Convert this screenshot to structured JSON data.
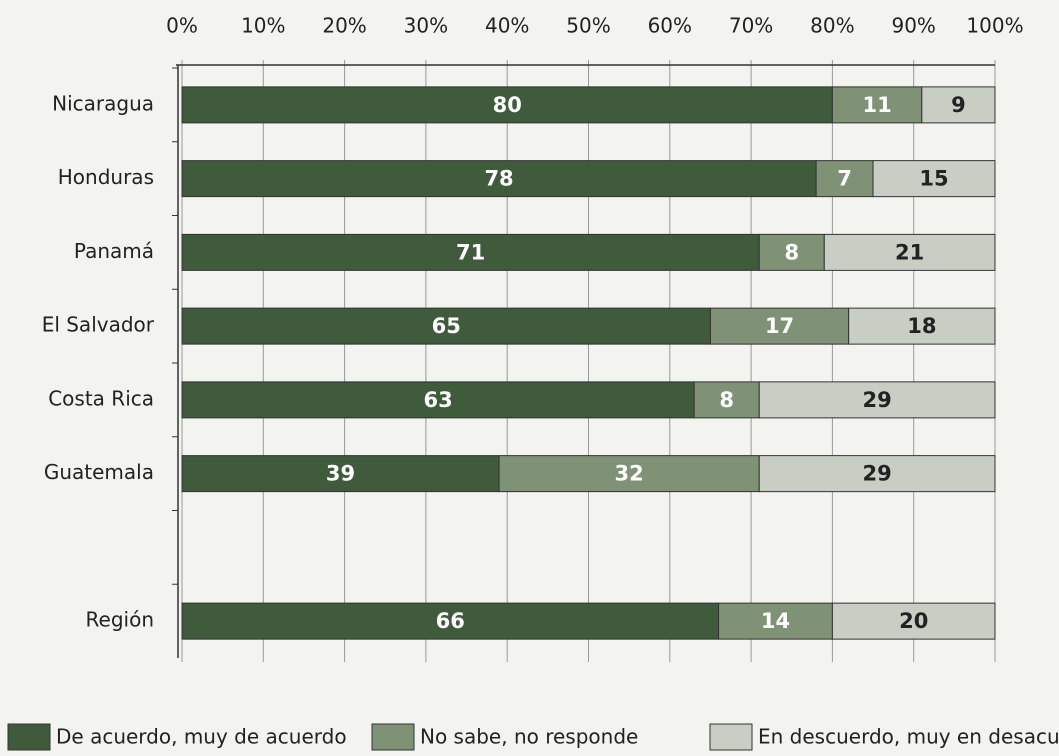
{
  "chart_data": {
    "type": "stacked-barh",
    "categories": [
      "Nicaragua",
      "Honduras",
      "Panamá",
      "El Salvador",
      "Costa Rica",
      "Guatemala",
      null,
      "Región"
    ],
    "series": [
      {
        "name": "De acuerdo, muy de acuerdo",
        "color": "#3f5b3c",
        "values": [
          80,
          78,
          71,
          65,
          63,
          39,
          null,
          66
        ]
      },
      {
        "name": "No sabe, no responde",
        "color": "#7f9276",
        "values": [
          11,
          7,
          8,
          17,
          8,
          32,
          null,
          14
        ]
      },
      {
        "name": "En descuerdo, muy en desacuerdo",
        "color": "#c9cec5",
        "values": [
          9,
          15,
          21,
          18,
          29,
          29,
          null,
          20
        ]
      }
    ],
    "xlim": [
      0,
      100
    ],
    "xticks": [
      {
        "value": 0,
        "label": "0%"
      },
      {
        "value": 10,
        "label": "10%"
      },
      {
        "value": 20,
        "label": "20%"
      },
      {
        "value": 30,
        "label": "30%"
      },
      {
        "value": 40,
        "label": "40%"
      },
      {
        "value": 50,
        "label": "50%"
      },
      {
        "value": 60,
        "label": "60%"
      },
      {
        "value": 70,
        "label": "70%"
      },
      {
        "value": 80,
        "label": "80%"
      },
      {
        "value": 90,
        "label": "90%"
      },
      {
        "value": 100,
        "label": "100%"
      }
    ],
    "grid": true
  }
}
